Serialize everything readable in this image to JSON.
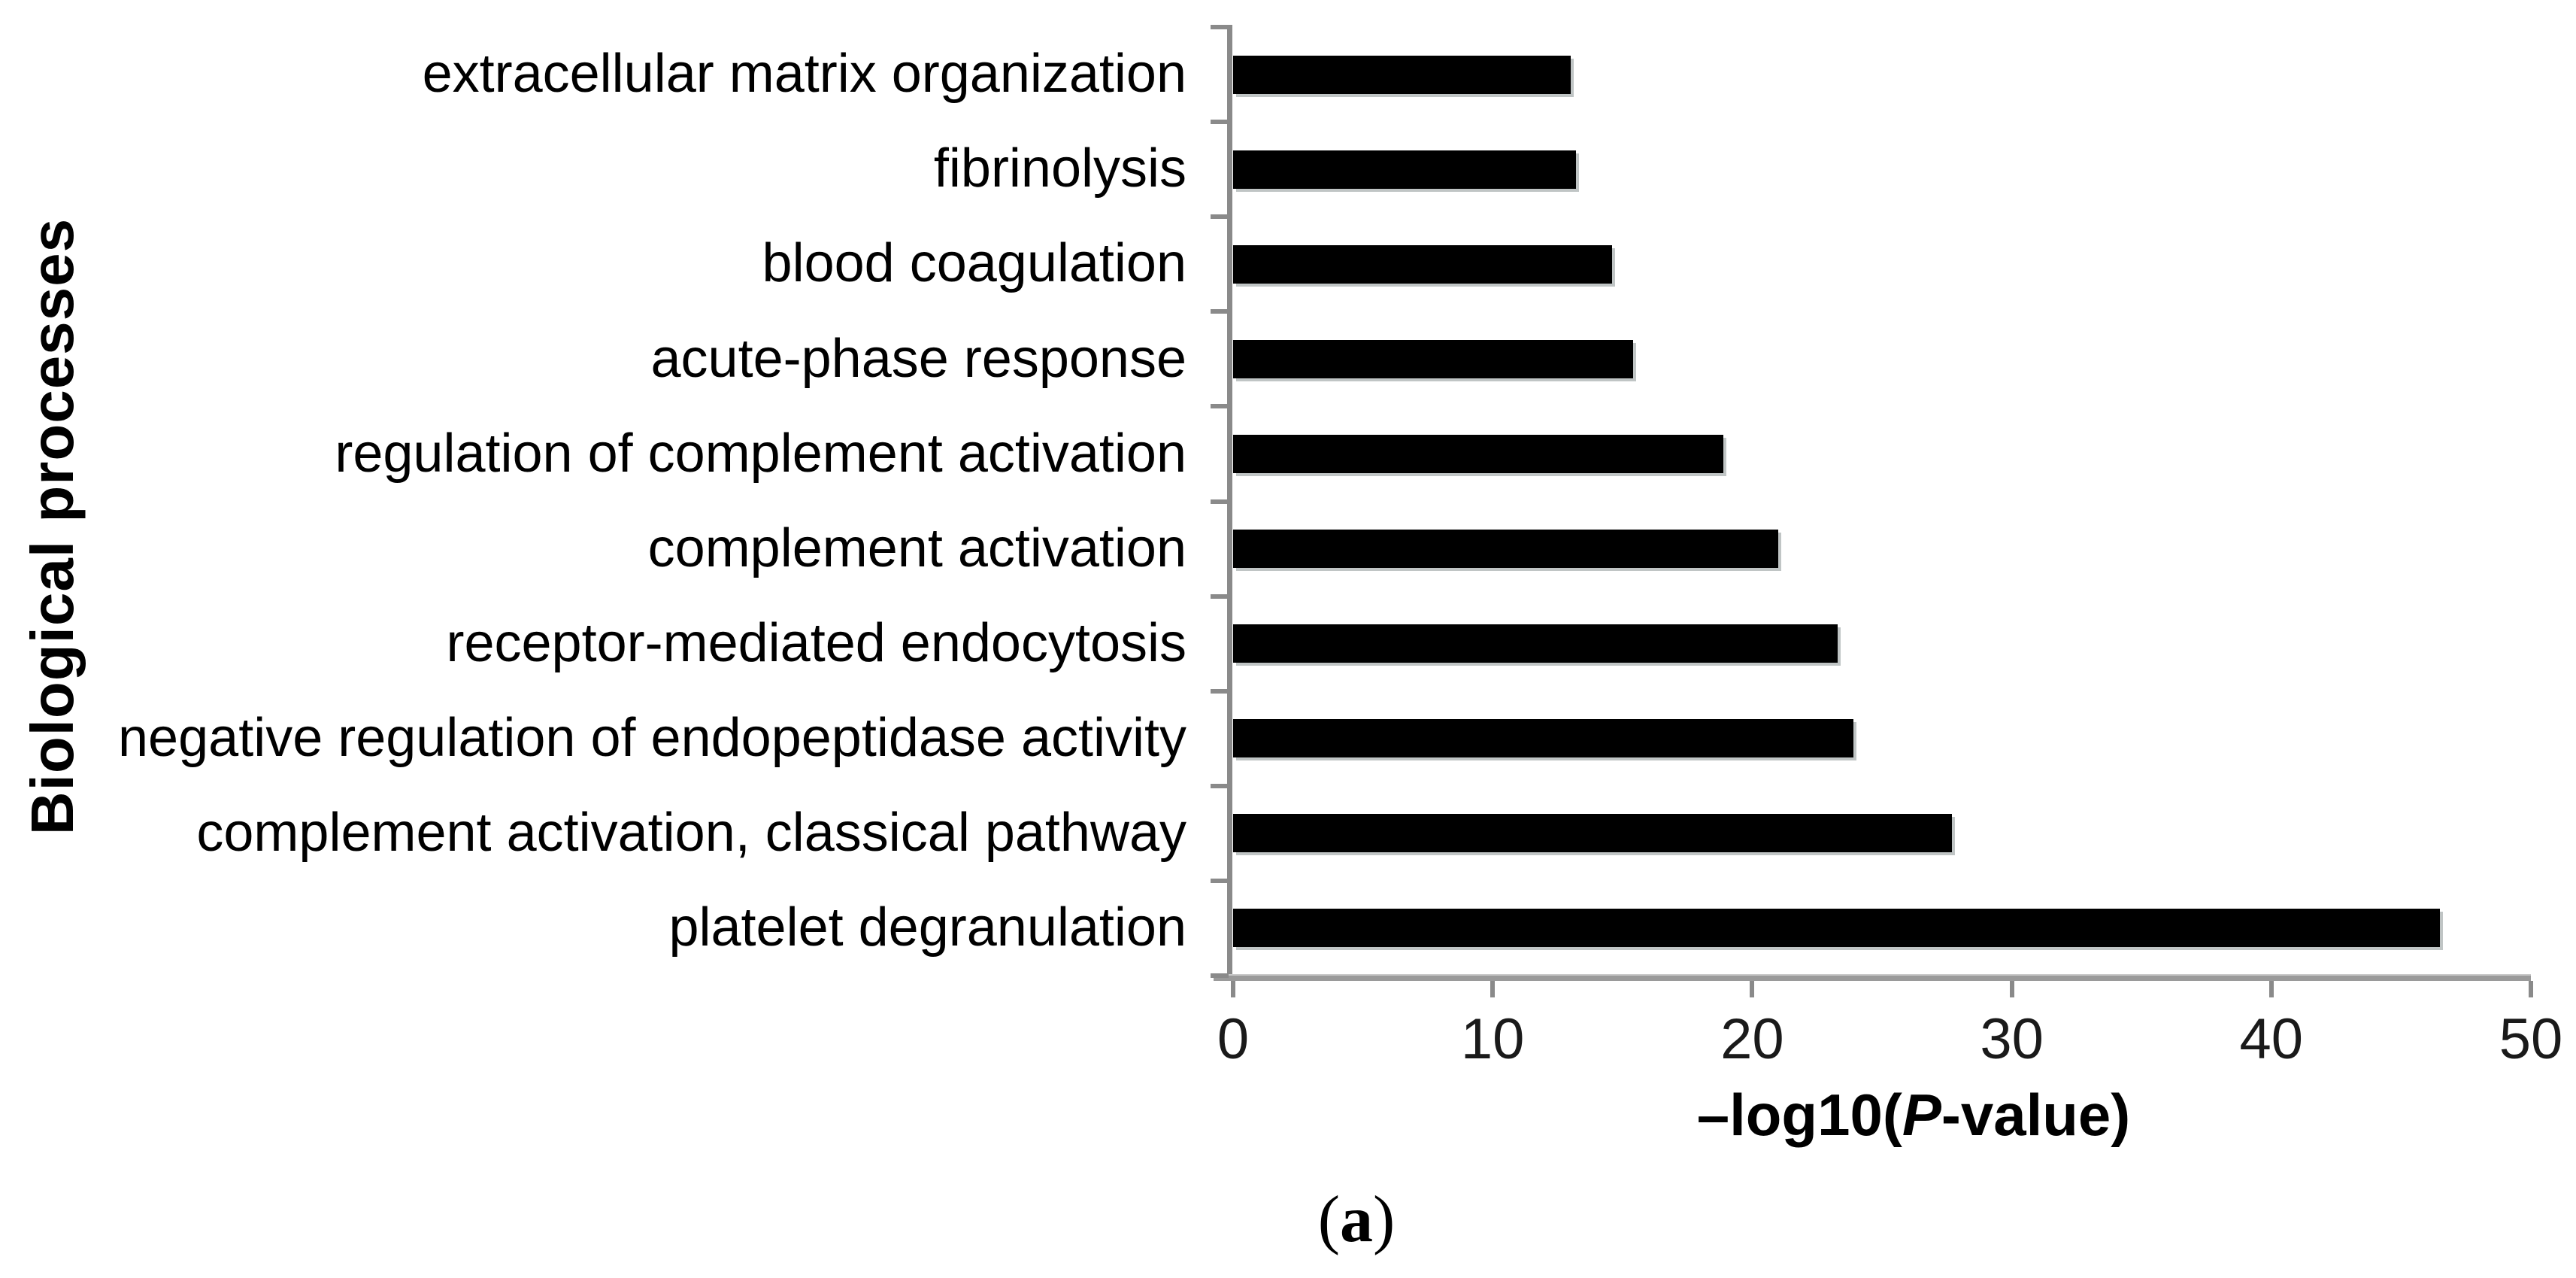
{
  "figure": {
    "caption": {
      "open_paren": "(",
      "letter": "a",
      "close_paren": ")"
    }
  },
  "chart_data": {
    "type": "bar",
    "orientation": "horizontal",
    "title": "",
    "ylabel": "Biological processes",
    "xlabel_prefix": "–log10(",
    "xlabel_italic": "P",
    "xlabel_suffix": "-value)",
    "categories": [
      "extracellular matrix organization",
      "fibrinolysis",
      "blood coagulation",
      "acute-phase response",
      "regulation of complement activation",
      "complement activation",
      "receptor-mediated endocytosis",
      "negative regulation of endopeptidase activity",
      "complement activation, classical pathway",
      "platelet degranulation"
    ],
    "values": [
      13.0,
      13.2,
      14.6,
      15.4,
      18.9,
      21.0,
      23.3,
      23.9,
      27.7,
      46.5
    ],
    "xlim": [
      0,
      50
    ],
    "xticks": [
      0,
      10,
      20,
      30,
      40,
      50
    ],
    "bar_color": "#000000",
    "axis_color": "#8a8a8a",
    "grid": false,
    "legend_position": "none"
  }
}
